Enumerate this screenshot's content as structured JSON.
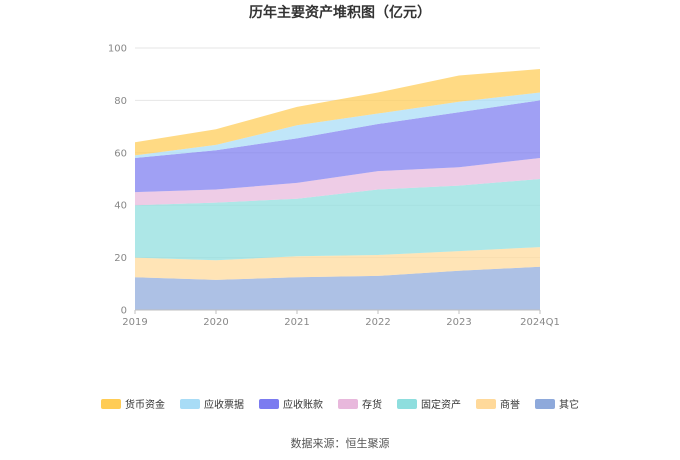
{
  "chart_data": {
    "type": "area",
    "stacked": true,
    "title": "历年主要资产堆积图（亿元）",
    "categories": [
      "2019",
      "2020",
      "2021",
      "2022",
      "2023",
      "2024Q1"
    ],
    "ylim": [
      0,
      100
    ],
    "yticks": [
      0,
      20,
      40,
      60,
      80,
      100
    ],
    "grid": true,
    "legend_position": "bottom",
    "series": [
      {
        "name": "其它",
        "color": "#8ea9db",
        "values": [
          12.5,
          11.5,
          12.5,
          13,
          15,
          16.5
        ]
      },
      {
        "name": "商誉",
        "color": "#ffd99a",
        "values": [
          7.5,
          7.5,
          8,
          8,
          7.5,
          7.5
        ]
      },
      {
        "name": "固定资产",
        "color": "#8edede",
        "values": [
          20,
          22,
          22,
          25,
          25,
          26
        ]
      },
      {
        "name": "存货",
        "color": "#e8b8dc",
        "values": [
          5,
          5,
          6,
          7,
          7,
          8
        ]
      },
      {
        "name": "应收账款",
        "color": "#7b7bf0",
        "values": [
          13,
          15,
          17,
          18,
          21,
          22
        ]
      },
      {
        "name": "应收票据",
        "color": "#a8dcf6",
        "values": [
          1,
          2,
          5,
          4,
          4,
          3
        ]
      },
      {
        "name": "货币资金",
        "color": "#ffcc55",
        "values": [
          5,
          6,
          7,
          8,
          10,
          9
        ]
      }
    ],
    "legend_order": [
      "货币资金",
      "应收票据",
      "应收账款",
      "存货",
      "固定资产",
      "商誉",
      "其它"
    ]
  },
  "source": "数据来源：恒生聚源"
}
